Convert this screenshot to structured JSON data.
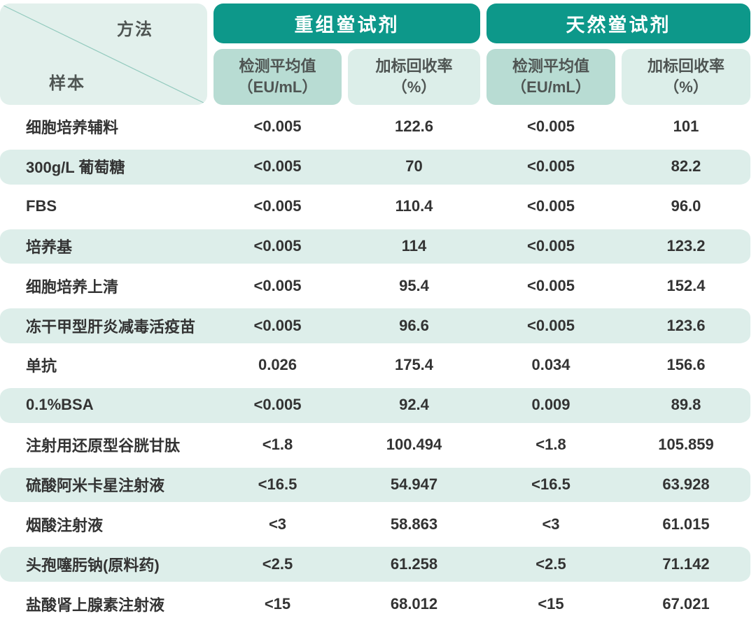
{
  "table": {
    "corner": {
      "method_label": "方法",
      "sample_label": "样本"
    },
    "groups": [
      {
        "label": "重组鲎试剂"
      },
      {
        "label": "天然鲎试剂"
      }
    ],
    "sub_headers": [
      {
        "line1": "检测平均值",
        "line2": "（EU/mL）"
      },
      {
        "line1": "加标回收率",
        "line2": "（%）"
      },
      {
        "line1": "检测平均值",
        "line2": "（EU/mL）"
      },
      {
        "line1": "加标回收率",
        "line2": "（%）"
      }
    ]
  },
  "colors": {
    "header_teal": "#0d988a",
    "subheader_dark_mint": "#b8dcd3",
    "subheader_light_mint": "#dceee9",
    "row_stripe_mint": "#ddeeea",
    "corner_cell_bg": "#e2f0ec",
    "diagonal_line": "#93cabe",
    "header_text": "#ffffff",
    "body_text": "#333333"
  },
  "chart_data": {
    "type": "table",
    "column_groups": [
      "重组鲎试剂",
      "天然鲎试剂"
    ],
    "columns": [
      "样本",
      "重组鲎试剂 检测平均值（EU/mL）",
      "重组鲎试剂 加标回收率（%）",
      "天然鲎试剂 检测平均值（EU/mL）",
      "天然鲎试剂 加标回收率（%）"
    ],
    "rows": [
      [
        "细胞培养辅料",
        "<0.005",
        "122.6",
        "<0.005",
        "101"
      ],
      [
        "300g/L 葡萄糖",
        "<0.005",
        "70",
        "<0.005",
        "82.2"
      ],
      [
        "FBS",
        "<0.005",
        "110.4",
        "<0.005",
        "96.0"
      ],
      [
        "培养基",
        "<0.005",
        "114",
        "<0.005",
        "123.2"
      ],
      [
        "细胞培养上清",
        "<0.005",
        "95.4",
        "<0.005",
        "152.4"
      ],
      [
        "冻干甲型肝炎减毒活疫苗",
        "<0.005",
        "96.6",
        "<0.005",
        "123.6"
      ],
      [
        "单抗",
        "0.026",
        "175.4",
        "0.034",
        "156.6"
      ],
      [
        "0.1%BSA",
        "<0.005",
        "92.4",
        "0.009",
        "89.8"
      ],
      [
        "注射用还原型谷胱甘肽",
        "<1.8",
        "100.494",
        "<1.8",
        "105.859"
      ],
      [
        "硫酸阿米卡星注射液",
        "<16.5",
        "54.947",
        "<16.5",
        "63.928"
      ],
      [
        "烟酸注射液",
        "<3",
        "58.863",
        "<3",
        "61.015"
      ],
      [
        "头孢噻肟钠(原料药)",
        "<2.5",
        "61.258",
        "<2.5",
        "71.142"
      ],
      [
        "盐酸肾上腺素注射液",
        "<15",
        "68.012",
        "<15",
        "67.021"
      ]
    ]
  }
}
